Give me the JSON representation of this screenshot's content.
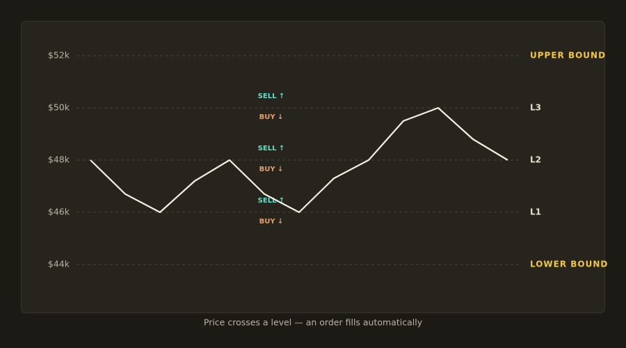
{
  "chart_data": {
    "type": "line",
    "caption": "Price crosses a level — an order fills automatically",
    "categories": [
      null,
      null,
      null,
      null,
      null,
      null,
      null,
      null,
      null,
      null,
      null,
      null,
      null
    ],
    "series": [
      {
        "color": "#f4efe2",
        "values": [
          48000,
          46700,
          46000,
          47200,
          48000,
          46700,
          46000,
          47300,
          48000,
          49500,
          50000,
          48800,
          48000
        ]
      }
    ],
    "ylim": [
      44000,
      52000
    ],
    "yticks": [
      {
        "value": 44000,
        "label": "$44k"
      },
      {
        "value": 46000,
        "label": "$46k"
      },
      {
        "value": 48000,
        "label": "$48k"
      },
      {
        "value": 50000,
        "label": "$50k"
      },
      {
        "value": 52000,
        "label": "$52k"
      }
    ],
    "grid": true,
    "levels": [
      {
        "value": 52000,
        "label": "UPPER BOUND",
        "color": "#f2c744"
      },
      {
        "value": 50000,
        "label": "L3",
        "color": "#e6dfc8",
        "sell": "SELL ↑",
        "buy": "BUY ↓"
      },
      {
        "value": 48000,
        "label": "L2",
        "color": "#e6dfc8",
        "sell": "SELL ↑",
        "buy": "BUY ↓"
      },
      {
        "value": 46000,
        "label": "L1",
        "color": "#e6dfc8",
        "sell": "SELL ↑",
        "buy": "BUY ↓"
      },
      {
        "value": 44000,
        "label": "LOWER BOUND",
        "color": "#f2c744"
      }
    ],
    "sell_color": "#5ee0c8",
    "buy_color": "#e0a070"
  }
}
